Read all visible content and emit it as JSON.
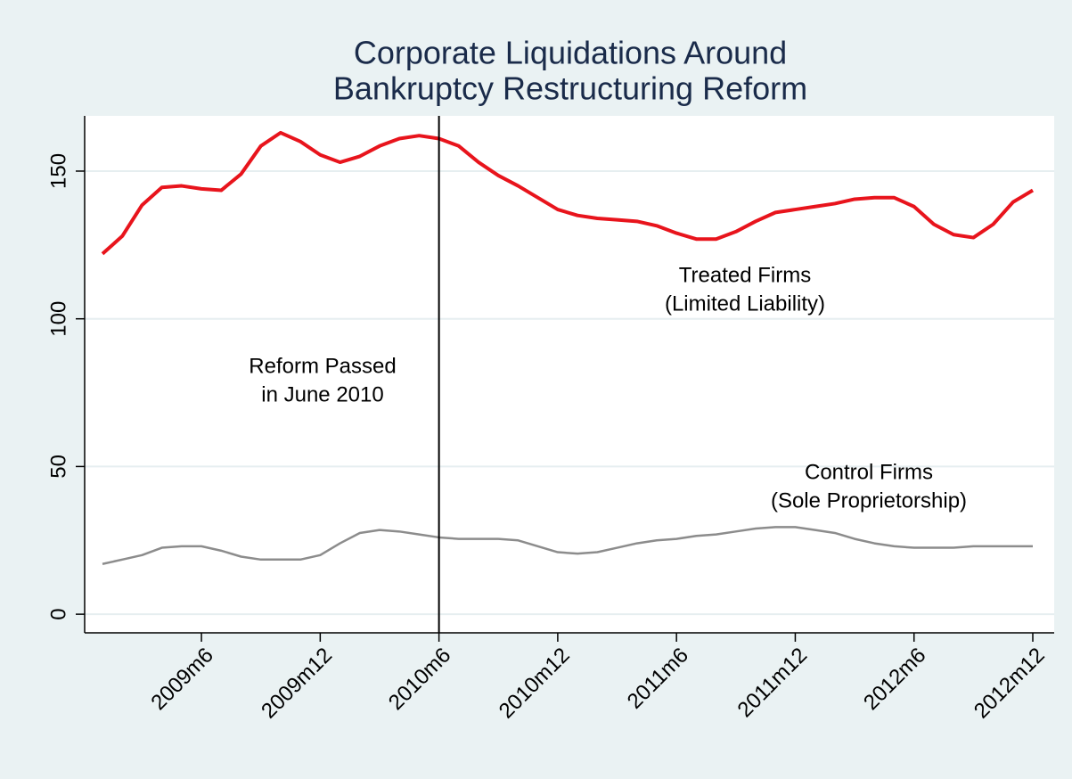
{
  "chart_data": {
    "type": "line",
    "title": [
      "Corporate Liquidations Around",
      "Bankruptcy Restructuring Reform"
    ],
    "categories": [
      null,
      null,
      null,
      null,
      null,
      "2009m6",
      null,
      null,
      null,
      null,
      null,
      "2009m12",
      null,
      null,
      null,
      null,
      null,
      "2010m6",
      null,
      null,
      null,
      null,
      null,
      "2010m12",
      null,
      null,
      null,
      null,
      null,
      "2011m6",
      null,
      null,
      null,
      null,
      null,
      "2011m12",
      null,
      null,
      null,
      null,
      null,
      "2012m6",
      null,
      null,
      null,
      null,
      null,
      "2012m12"
    ],
    "series": [
      {
        "name": "Treated Firms (Limited Liability)",
        "color": "#e8141c",
        "values": [
          122,
          128,
          138.5,
          144.5,
          145,
          144,
          143.5,
          149,
          158.5,
          163,
          160,
          155.5,
          153,
          155,
          158.5,
          161,
          162,
          161,
          158.5,
          153,
          148.5,
          145,
          141,
          137,
          135,
          134,
          133.5,
          133,
          131.5,
          129,
          127,
          127,
          129.5,
          133,
          136,
          137,
          138,
          139,
          140.5,
          141,
          141,
          138,
          132,
          128.5,
          127.5,
          132,
          139.5,
          143.5
        ]
      },
      {
        "name": "Control Firms (Sole Proprietorship)",
        "color": "#8c8c8c",
        "values": [
          17,
          18.5,
          20,
          22.5,
          23,
          23,
          21.5,
          19.5,
          18.5,
          18.5,
          18.5,
          20,
          24,
          27.5,
          28.5,
          28,
          27,
          26,
          25.5,
          25.5,
          25.5,
          25,
          23,
          21,
          20.5,
          21,
          22.5,
          24,
          25,
          25.5,
          26.5,
          27,
          28,
          29,
          29.5,
          29.5,
          28.5,
          27.5,
          25.5,
          24,
          23,
          22.5,
          22.5,
          22.5,
          23,
          23,
          23,
          23
        ]
      }
    ],
    "annotations": [
      {
        "lines": [
          "Reform Passed",
          "in June 2010"
        ]
      },
      {
        "lines": [
          "Treated Firms",
          "(Limited Liability)"
        ]
      },
      {
        "lines": [
          "Control Firms",
          "(Sole Proprietorship)"
        ]
      }
    ],
    "vline": "2010m6",
    "ylim": [
      -6.3,
      168.7
    ],
    "yticks": [
      0,
      50,
      100,
      150
    ],
    "grid": true
  }
}
